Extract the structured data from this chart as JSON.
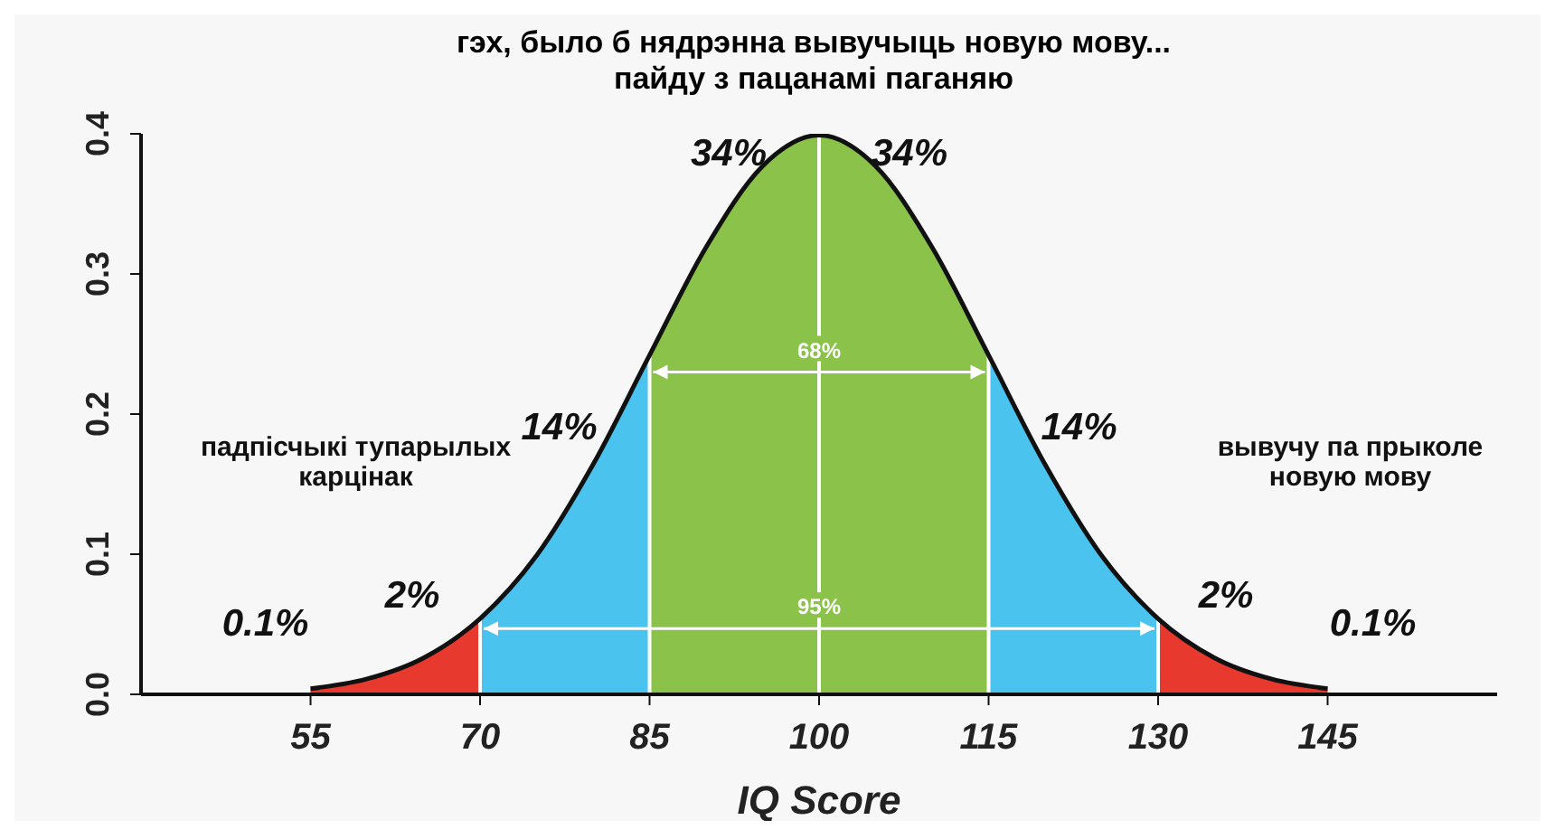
{
  "chart_data": {
    "type": "area",
    "title": "гэх, было б нядрэнна вывучыць новую мову...",
    "subtitle": "пайду з пацанамі паганяю",
    "xlabel": "IQ Score",
    "xlim": [
      40,
      160
    ],
    "xticks": [
      55,
      70,
      85,
      100,
      115,
      130,
      145
    ],
    "ylim": [
      0,
      0.4
    ],
    "yticks": [
      {
        "value": 0,
        "label": "0.0"
      },
      0.1,
      0.2,
      0.3,
      0.4
    ],
    "series": [
      {
        "color": "#e8392e",
        "x": [
          55,
          60,
          65,
          70
        ],
        "values": [
          0.004,
          0.011,
          0.026,
          0.054
        ]
      },
      {
        "color": "#4bc3ef",
        "x": [
          70,
          75,
          80,
          85
        ],
        "values": [
          0.054,
          0.099,
          0.164,
          0.242
        ]
      },
      {
        "color": "#8bc34a",
        "x": [
          85,
          90,
          95,
          100,
          105,
          110,
          115
        ],
        "values": [
          0.242,
          0.319,
          0.377,
          0.399,
          0.377,
          0.319,
          0.242
        ]
      },
      {
        "color": "#4bc3ef",
        "x": [
          115,
          120,
          125,
          130
        ],
        "values": [
          0.242,
          0.164,
          0.099,
          0.054
        ]
      },
      {
        "color": "#e8392e",
        "x": [
          130,
          135,
          140,
          145
        ],
        "values": [
          0.054,
          0.026,
          0.011,
          0.004
        ]
      },
      {
        "type": "line",
        "color": "#111111",
        "x": [
          55,
          60,
          65,
          70,
          75,
          80,
          85,
          90,
          95,
          100,
          105,
          110,
          115,
          120,
          125,
          130,
          135,
          140,
          145
        ],
        "values": [
          0.004,
          0.011,
          0.026,
          0.054,
          0.099,
          0.164,
          0.242,
          0.319,
          0.377,
          0.399,
          0.377,
          0.319,
          0.242,
          0.164,
          0.099,
          0.054,
          0.026,
          0.011,
          0.004
        ]
      }
    ],
    "marker": "none",
    "ref_lines": [
      {
        "axis": "x",
        "value": 70,
        "color": "#ffffff"
      },
      {
        "axis": "x",
        "value": 85,
        "color": "#ffffff"
      },
      {
        "axis": "x",
        "value": 100,
        "color": "#ffffff"
      },
      {
        "axis": "x",
        "value": 115,
        "color": "#ffffff"
      },
      {
        "axis": "x",
        "value": 130,
        "color": "#ffffff"
      }
    ],
    "annotations": [
      "34%",
      "34%",
      {
        "text": "68%",
        "x": 100,
        "y": 0.23
      },
      "14%",
      "14%",
      {
        "text": "95%",
        "x": 100,
        "y": 0.047
      },
      "2%",
      "2%",
      "0.1%",
      "0.1%",
      "падпісчыкі тупарылых карцінак",
      "вывучу па прыколе новую мову"
    ]
  }
}
